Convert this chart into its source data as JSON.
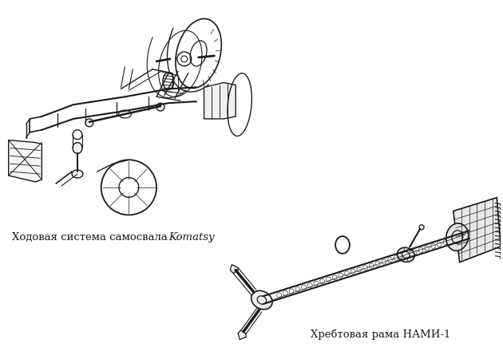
{
  "background_color": "#ffffff",
  "caption1_text": "Ходовая система самосвала ",
  "caption1_italic": "Komatsy",
  "caption2_text": "Хребтовая рама НАМИ-1",
  "fig_width": 6.3,
  "fig_height": 4.5,
  "dpi": 100,
  "image_data": ""
}
